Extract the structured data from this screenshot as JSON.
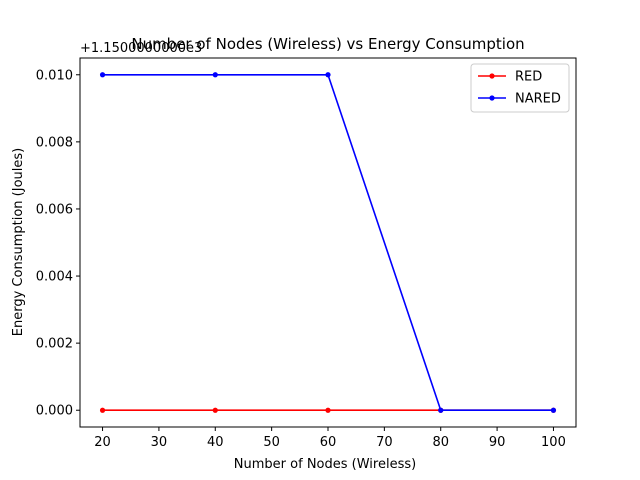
{
  "chart_data": {
    "type": "line",
    "title": "Number of Nodes (Wireless)  vs Energy Consumption",
    "xlabel": "Number of Nodes (Wireless)",
    "ylabel": "Energy Consumption (Joules)",
    "y_offset_text": "+1.1500000000e3",
    "x": [
      20,
      40,
      60,
      80,
      100
    ],
    "xlim": [
      16,
      104
    ],
    "ylim": [
      -0.0005,
      0.0105
    ],
    "x_ticks": [
      20,
      30,
      40,
      50,
      60,
      70,
      80,
      90,
      100
    ],
    "x_tick_labels": [
      "20",
      "30",
      "40",
      "50",
      "60",
      "70",
      "80",
      "90",
      "100"
    ],
    "y_ticks": [
      0.0,
      0.002,
      0.004,
      0.006,
      0.008,
      0.01
    ],
    "y_tick_labels": [
      "0.000",
      "0.002",
      "0.004",
      "0.006",
      "0.008",
      "0.010"
    ],
    "grid": false,
    "legend_position": "top-right",
    "series": [
      {
        "name": "RED",
        "color": "#ff0000",
        "values": [
          0.0,
          0.0,
          0.0,
          0.0,
          0.0
        ]
      },
      {
        "name": "NARED",
        "color": "#0000ff",
        "values": [
          0.01,
          0.01,
          0.01,
          0.0,
          0.0
        ]
      }
    ]
  }
}
